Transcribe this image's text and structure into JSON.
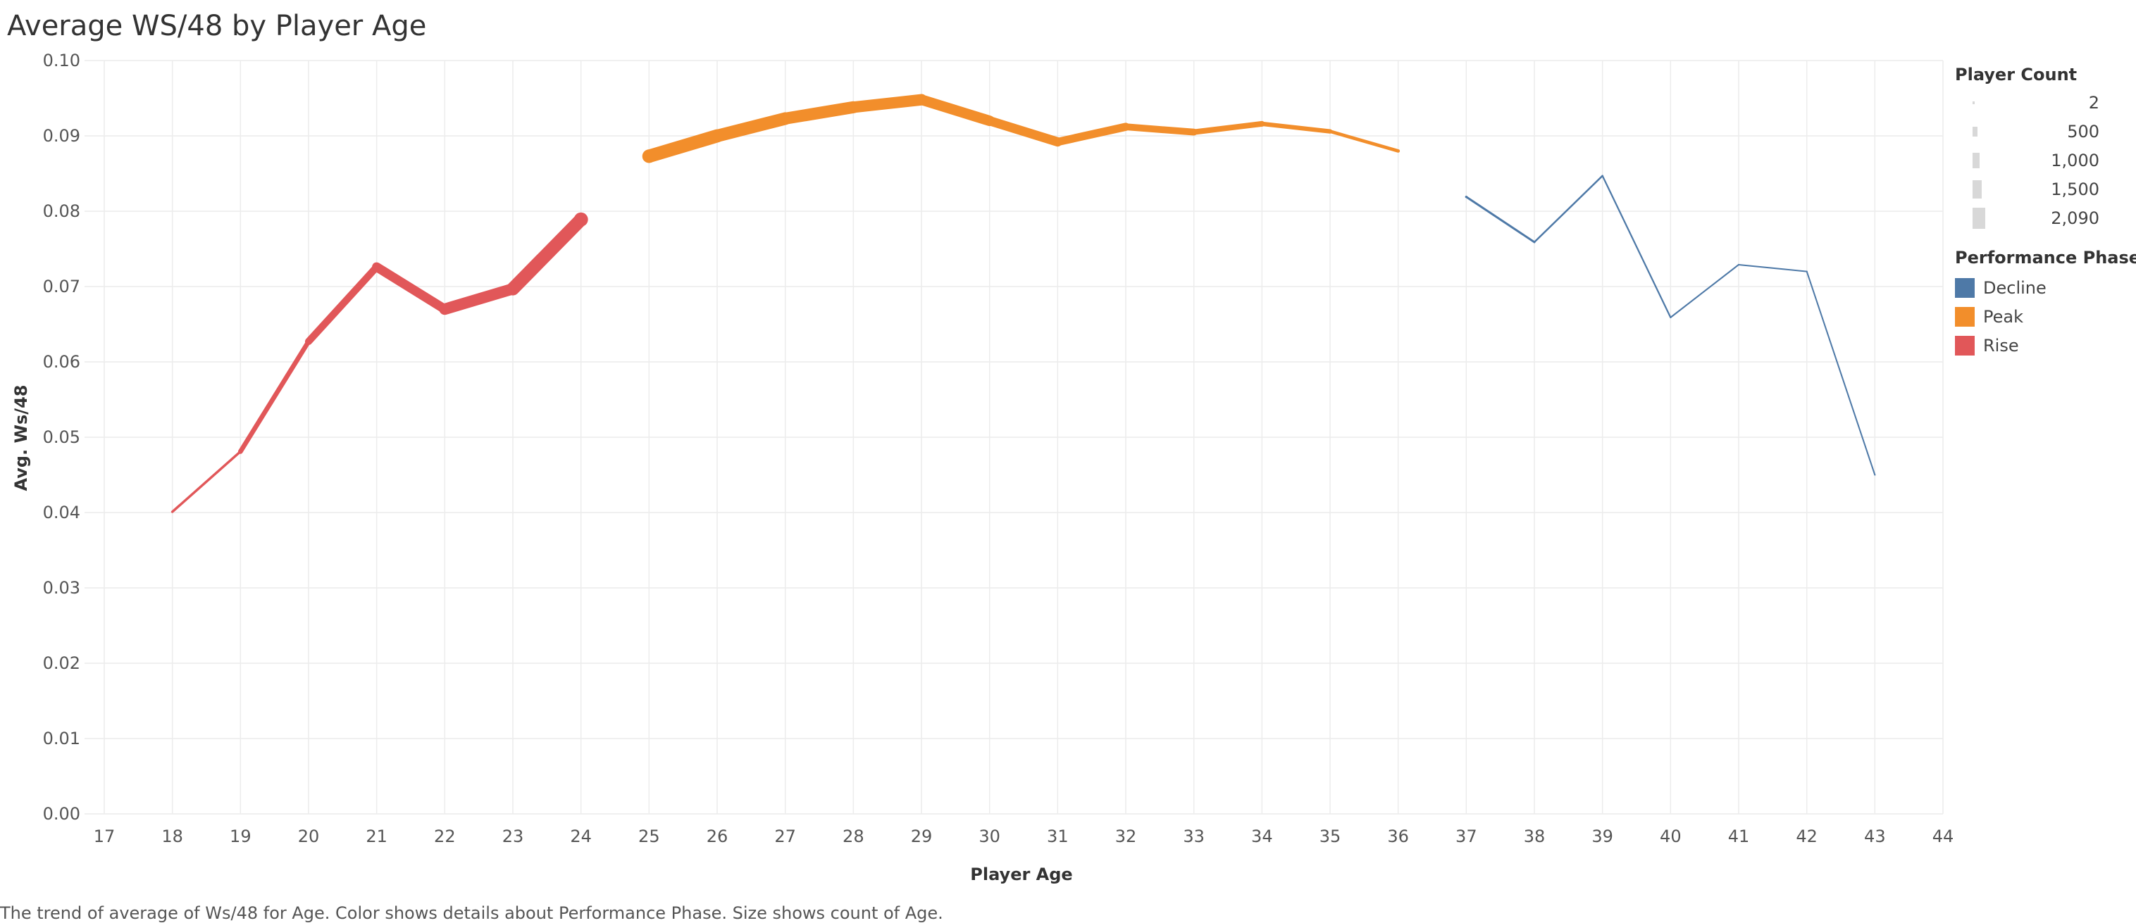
{
  "chart_data": {
    "type": "line",
    "title": "Average WS/48 by Player Age",
    "xlabel": "Player Age",
    "ylabel": "Avg. Ws/48",
    "xlim": [
      17,
      44
    ],
    "ylim": [
      0,
      0.1
    ],
    "x_ticks": [
      "17",
      "18",
      "19",
      "20",
      "21",
      "22",
      "23",
      "24",
      "25",
      "26",
      "27",
      "28",
      "29",
      "30",
      "31",
      "32",
      "33",
      "34",
      "35",
      "36",
      "37",
      "38",
      "39",
      "40",
      "41",
      "42",
      "43",
      "44"
    ],
    "y_ticks": [
      "0.00",
      "0.01",
      "0.02",
      "0.03",
      "0.04",
      "0.05",
      "0.06",
      "0.07",
      "0.08",
      "0.09",
      "0.10"
    ],
    "grid": true,
    "legend_position": "right",
    "size_legend": {
      "title": "Player Count",
      "entries": [
        "2",
        "500",
        "1,000",
        "1,500",
        "2,090"
      ]
    },
    "color_legend": {
      "title": "Performance Phase",
      "entries": [
        {
          "name": "Decline",
          "color": "#4e79a7"
        },
        {
          "name": "Peak",
          "color": "#f28e2b"
        },
        {
          "name": "Rise",
          "color": "#e15759"
        }
      ]
    },
    "series": [
      {
        "name": "Rise",
        "color": "#e15759",
        "x": [
          18,
          19,
          20,
          21,
          22,
          23,
          24
        ],
        "y": [
          0.0401,
          0.0481,
          0.0627,
          0.0726,
          0.067,
          0.0697,
          0.0789
        ],
        "count": [
          50,
          300,
          800,
          1100,
          1500,
          1800,
          2090
        ]
      },
      {
        "name": "Peak",
        "color": "#f28e2b",
        "x": [
          25,
          26,
          27,
          28,
          29,
          30,
          31,
          32,
          33,
          34,
          35,
          36
        ],
        "y": [
          0.0873,
          0.09,
          0.0923,
          0.0938,
          0.0948,
          0.092,
          0.0892,
          0.0912,
          0.0905,
          0.0916,
          0.0906,
          0.088
        ],
        "count": [
          2000,
          1900,
          1800,
          1700,
          1600,
          1400,
          1200,
          1000,
          800,
          600,
          400,
          250
        ]
      },
      {
        "name": "Decline",
        "color": "#4e79a7",
        "x": [
          37,
          38,
          39,
          40,
          41,
          42,
          43
        ],
        "y": [
          0.0819,
          0.0759,
          0.0847,
          0.0659,
          0.0729,
          0.072,
          0.045
        ],
        "count": [
          150,
          80,
          40,
          20,
          10,
          5,
          2
        ]
      }
    ],
    "caption": "The trend of average of Ws/48 for Age.  Color shows details about Performance Phase.  Size shows count of Age."
  }
}
